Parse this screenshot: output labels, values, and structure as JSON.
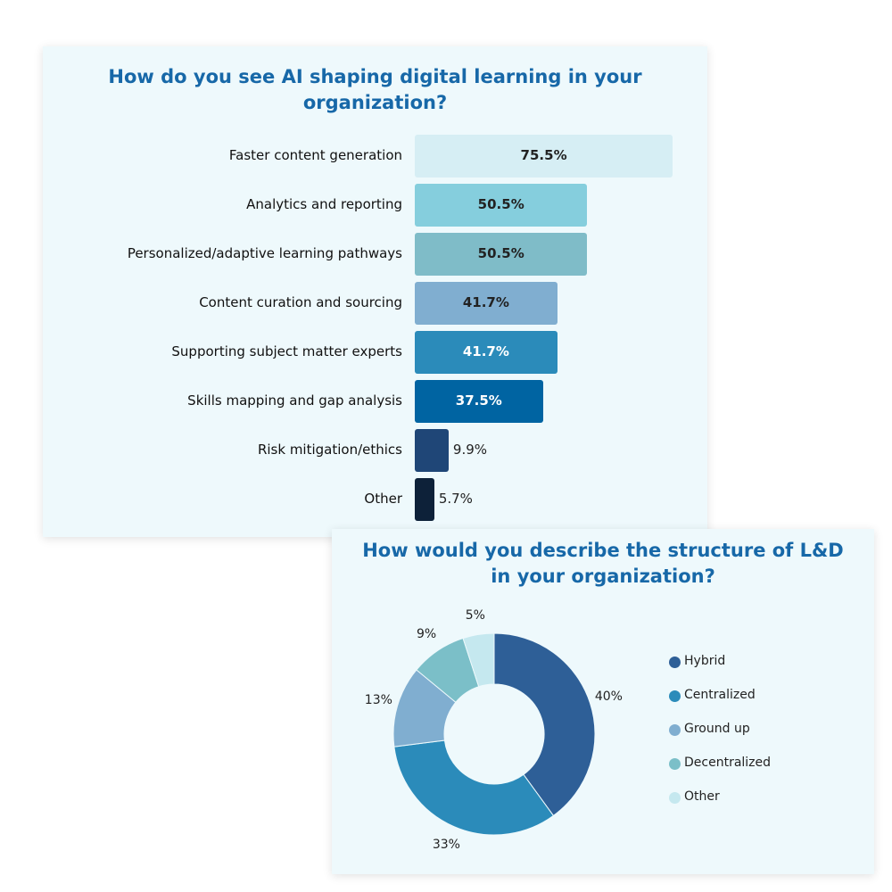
{
  "chart_data": [
    {
      "type": "bar",
      "orientation": "horizontal",
      "title": "How do you see AI shaping digital learning in your organization?",
      "categories": [
        "Faster content generation",
        "Analytics and reporting",
        "Personalized/adaptive learning pathways",
        "Content curation and sourcing",
        "Supporting subject matter experts",
        "Skills mapping and gap analysis",
        "Risk mitigation/ethics",
        "Other"
      ],
      "values": [
        75.5,
        50.5,
        50.5,
        41.7,
        41.7,
        37.5,
        9.9,
        5.7
      ],
      "labels": [
        "75.5%",
        "50.5%",
        "50.5%",
        "41.7%",
        "41.7%",
        "37.5%",
        "9.9%",
        "5.7%"
      ],
      "colors": [
        "#d6eef4",
        "#85cedd",
        "#7fbcc8",
        "#80aed0",
        "#2b8bba",
        "#0064a2",
        "#1f4677",
        "#0d2139"
      ],
      "label_colors": [
        "#222",
        "#222",
        "#222",
        "#222",
        "#ffffff",
        "#ffffff",
        "#222",
        "#222"
      ],
      "unit": "%"
    },
    {
      "type": "pie",
      "donut": true,
      "title": "How would you describe the structure of L&D in your organization?",
      "categories": [
        "Hybrid",
        "Centralized",
        "Ground up",
        "Decentralized",
        "Other"
      ],
      "values": [
        40,
        33,
        13,
        9,
        5
      ],
      "labels": [
        "40%",
        "33%",
        "13%",
        "9%",
        "5%"
      ],
      "colors": [
        "#2e5f97",
        "#2b8bba",
        "#80aed0",
        "#7bbfc8",
        "#c5e8ef"
      ],
      "legend": "right"
    }
  ]
}
